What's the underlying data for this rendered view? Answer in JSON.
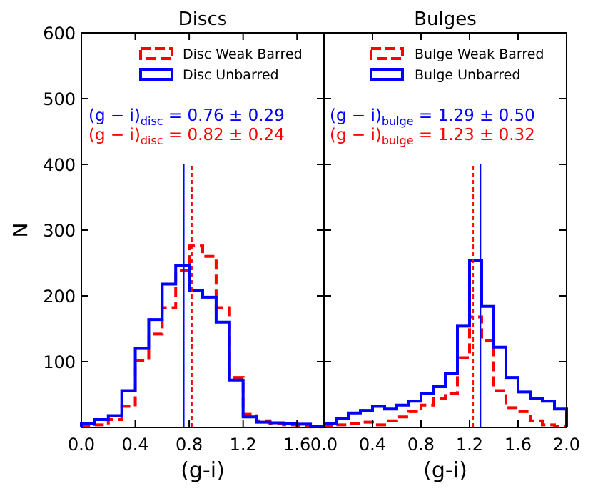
{
  "chart_data": [
    {
      "type": "histogram",
      "title": "Discs",
      "xlabel": "(g-i)",
      "ylabel": "N",
      "xlim": [
        0.0,
        1.8
      ],
      "ylim": [
        0,
        600
      ],
      "xticks": [
        0.0,
        0.4,
        0.8,
        1.2,
        1.6
      ],
      "xtick_labels": [
        "0.0",
        "0.4",
        "0.8",
        "1.2",
        "1.6"
      ],
      "yticks": [
        100,
        200,
        300,
        400,
        500,
        600
      ],
      "ytick_labels": [
        "100",
        "200",
        "300",
        "400",
        "500",
        "600"
      ],
      "bin_edges": [
        0.0,
        0.1,
        0.2,
        0.3,
        0.4,
        0.5,
        0.6,
        0.7,
        0.8,
        0.9,
        1.0,
        1.1,
        1.2,
        1.3,
        1.4,
        1.5,
        1.6,
        1.7,
        1.8
      ],
      "series": [
        {
          "name": "Disc Weak Barred",
          "color": "#ff0000",
          "style": "dashed",
          "values": [
            2,
            4,
            12,
            32,
            102,
            142,
            182,
            238,
            276,
            260,
            182,
            76,
            20,
            10,
            6,
            4,
            2,
            1
          ]
        },
        {
          "name": "Disc Unbarred",
          "color": "#0000ff",
          "style": "solid",
          "values": [
            6,
            12,
            18,
            56,
            120,
            164,
            218,
            246,
            208,
            198,
            160,
            72,
            16,
            8,
            7,
            6,
            5,
            2
          ]
        }
      ],
      "vlines": [
        {
          "x": 0.76,
          "color": "#0000ff",
          "style": "solid",
          "ymax": 400
        },
        {
          "x": 0.82,
          "color": "#ff0000",
          "style": "dashed",
          "ymax": 400
        }
      ],
      "annotations": [
        {
          "prefix": "(g − i)",
          "sub": "disc",
          "value": " = 0.76 ± 0.29",
          "color": "#0000ff"
        },
        {
          "prefix": "(g − i)",
          "sub": "disc",
          "value": " = 0.82 ± 0.24",
          "color": "#ff0000"
        }
      ],
      "legend_position": "top-right"
    },
    {
      "type": "histogram",
      "title": "Bulges",
      "xlabel": "(g-i)",
      "xlim": [
        0.0,
        2.0
      ],
      "ylim": [
        0,
        600
      ],
      "xticks": [
        0.0,
        0.4,
        0.8,
        1.2,
        1.6,
        2.0
      ],
      "xtick_labels": [
        "0.0",
        "0.4",
        "0.8",
        "1.2",
        "1.6",
        "2.0"
      ],
      "bin_edges": [
        0.0,
        0.1,
        0.2,
        0.3,
        0.4,
        0.5,
        0.6,
        0.7,
        0.8,
        0.9,
        1.0,
        1.1,
        1.2,
        1.3,
        1.4,
        1.5,
        1.6,
        1.7,
        1.8,
        1.9,
        2.0
      ],
      "series": [
        {
          "name": "Bulge Weak Barred",
          "color": "#ff0000",
          "style": "dashed",
          "values": [
            2,
            4,
            6,
            8,
            4,
            10,
            16,
            24,
            34,
            44,
            52,
            106,
            168,
            132,
            56,
            30,
            24,
            10,
            4,
            2
          ]
        },
        {
          "name": "Bulge Unbarred",
          "color": "#0000ff",
          "style": "solid",
          "values": [
            6,
            14,
            22,
            26,
            32,
            28,
            34,
            40,
            52,
            62,
            82,
            154,
            254,
            184,
            122,
            76,
            54,
            44,
            40,
            28
          ]
        }
      ],
      "vlines": [
        {
          "x": 1.29,
          "color": "#0000ff",
          "style": "solid",
          "ymax": 400
        },
        {
          "x": 1.23,
          "color": "#ff0000",
          "style": "dashed",
          "ymax": 400
        }
      ],
      "annotations": [
        {
          "prefix": "(g − i)",
          "sub": "bulge",
          "value": " = 1.29 ± 0.50",
          "color": "#0000ff"
        },
        {
          "prefix": "(g − i)",
          "sub": "bulge",
          "value": " = 1.23 ± 0.32",
          "color": "#ff0000"
        }
      ],
      "legend_position": "top-right"
    }
  ]
}
